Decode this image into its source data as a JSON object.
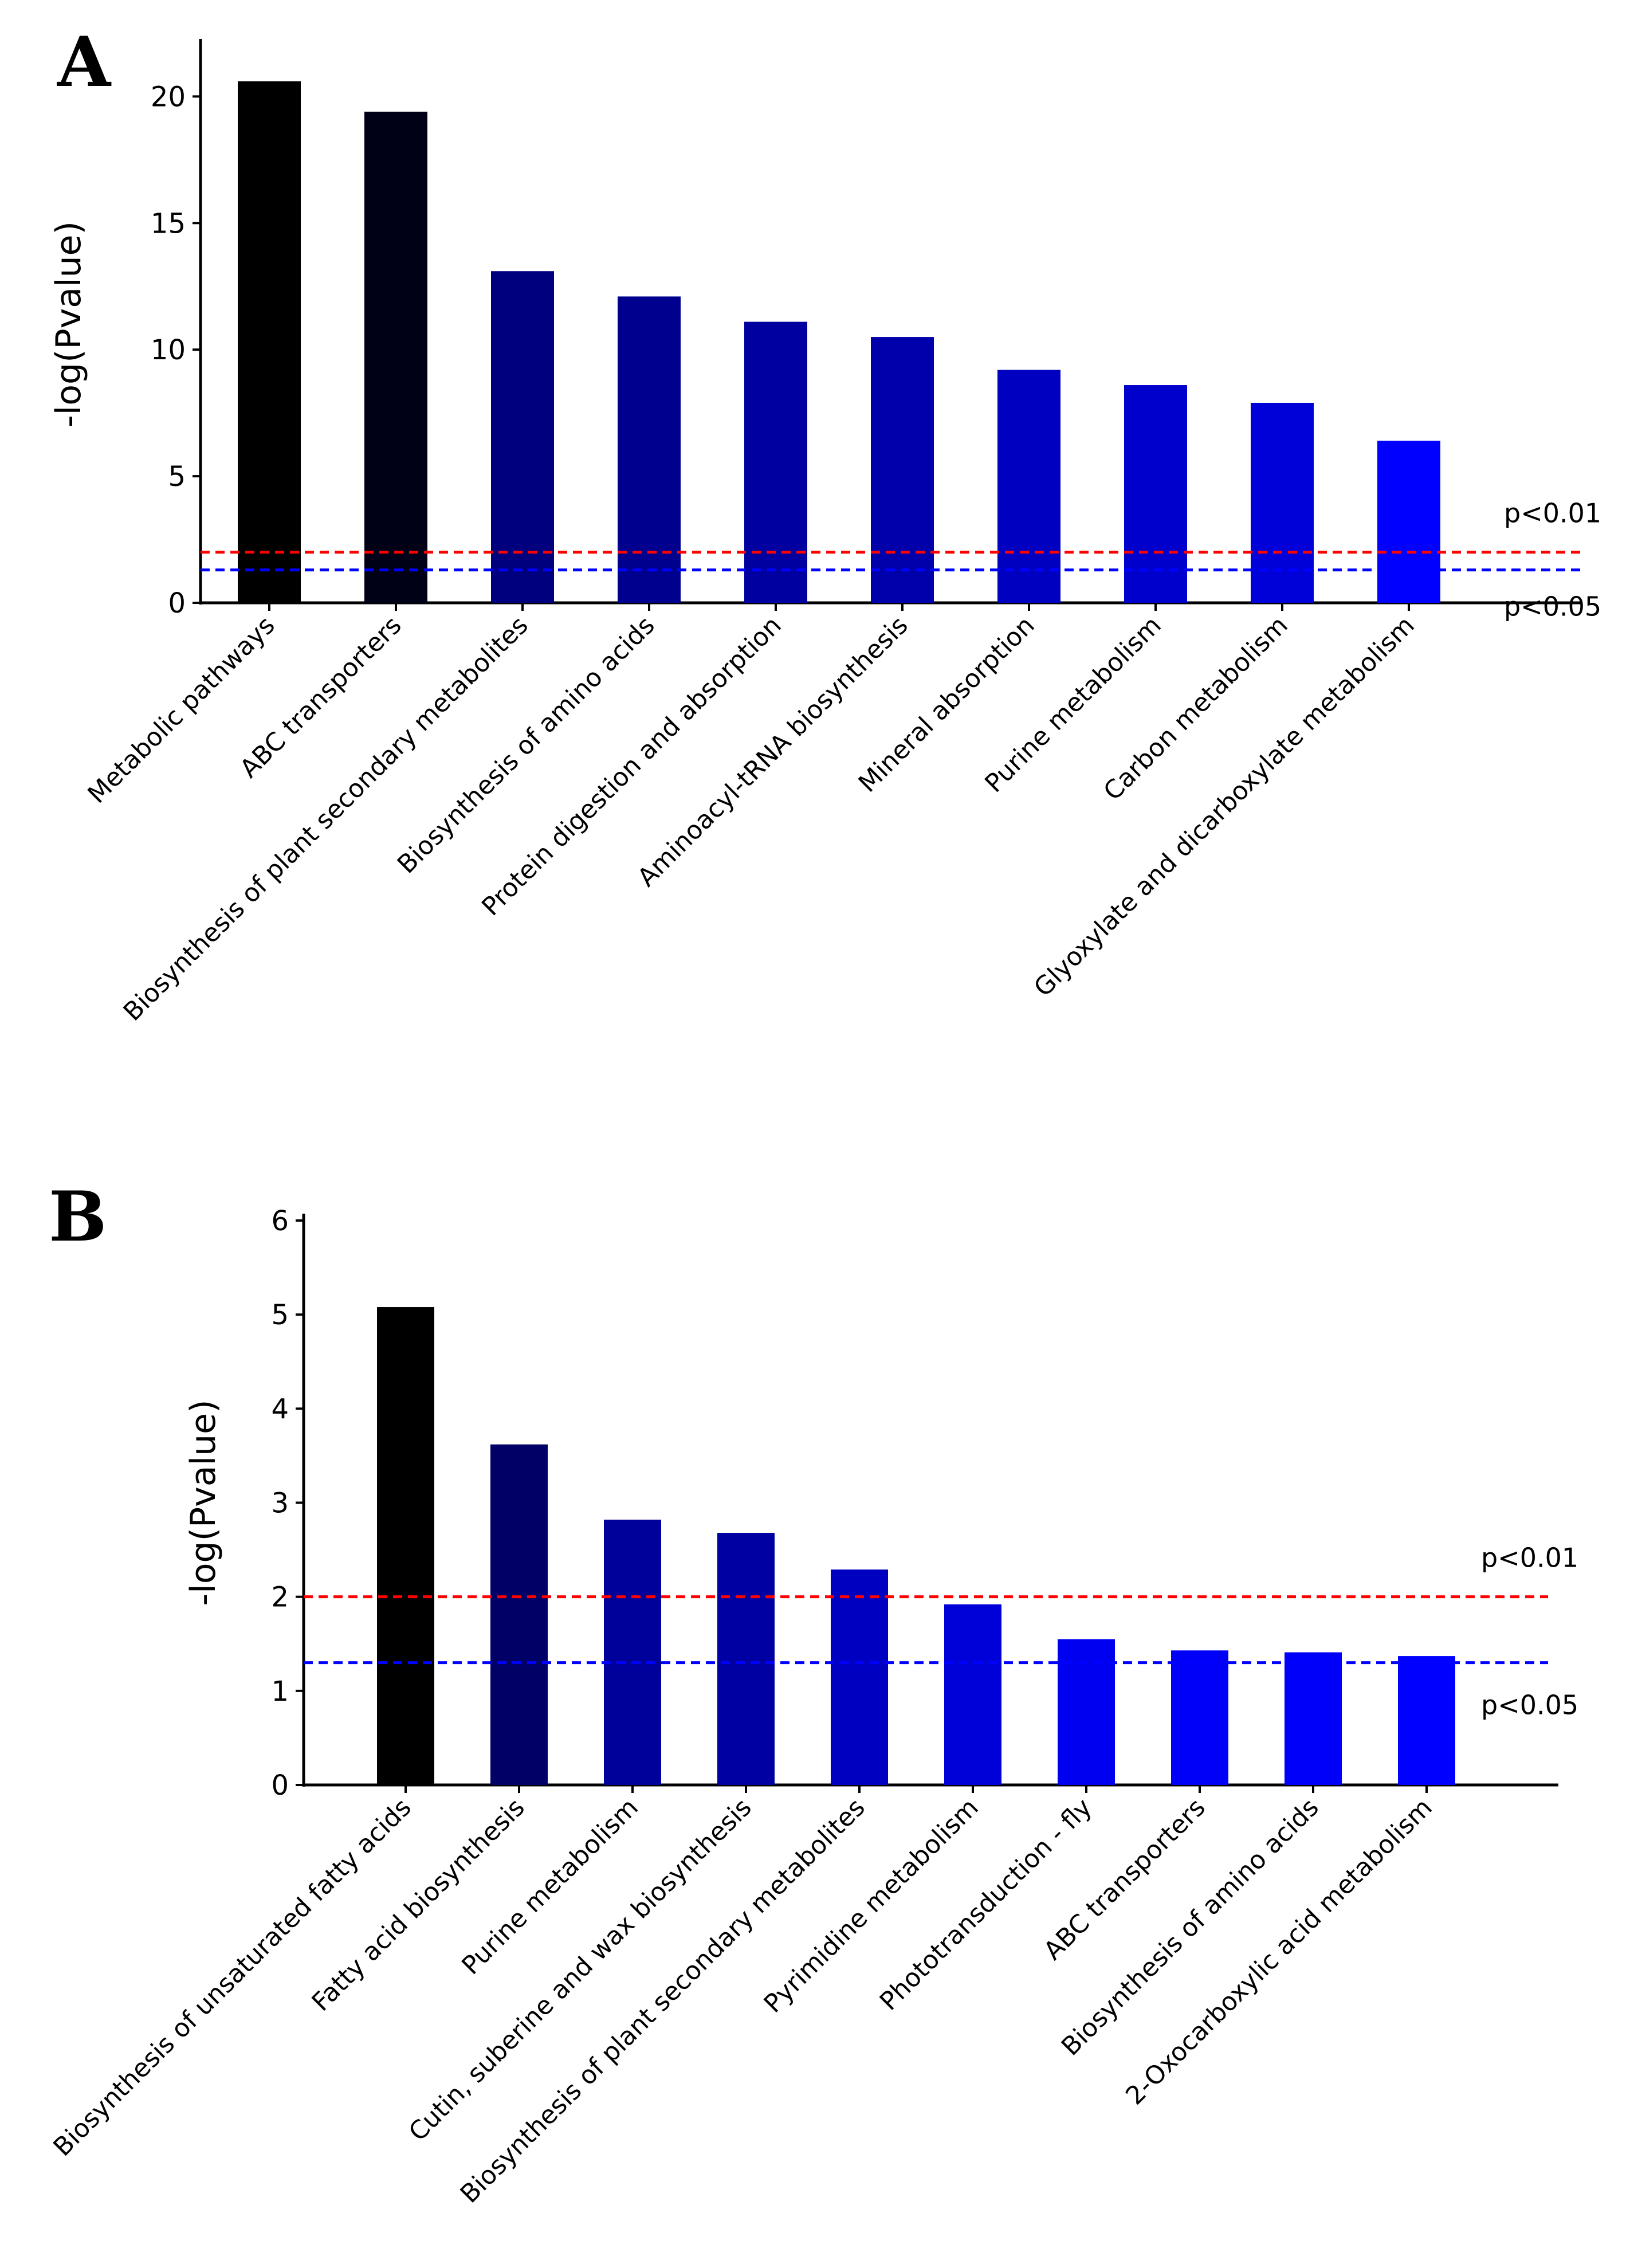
{
  "chart_data": [
    {
      "panel": "A",
      "type": "bar",
      "ylabel": "-log(Pvalue)",
      "ylim": [
        0,
        22
      ],
      "yticks": [
        0,
        5,
        10,
        15,
        20
      ],
      "categories": [
        "Metabolic pathways",
        "ABC transporters",
        "Biosynthesis of plant secondary metabolites",
        "Biosynthesis of amino acids",
        "Protein digestion and absorption",
        "Aminoacyl-tRNA biosynthesis",
        "Mineral absorption",
        "Purine metabolism",
        "Carbon metabolism",
        "Glyoxylate and dicarboxylate metabolism"
      ],
      "values": [
        20.6,
        19.4,
        13.1,
        12.1,
        11.1,
        10.5,
        9.2,
        8.6,
        7.9,
        6.4
      ],
      "colors": [
        "#000000",
        "#000016",
        "#00007e",
        "#00008f",
        "#0000a0",
        "#0000aa",
        "#0000c0",
        "#0000cc",
        "#0000d8",
        "#0000ff"
      ],
      "thresholds": [
        {
          "value": 2.0,
          "label": "p<0.01",
          "color": "#ff0000"
        },
        {
          "value": 1.3,
          "label": "p<0.05",
          "color": "#0000ff"
        }
      ]
    },
    {
      "panel": "B",
      "type": "bar",
      "ylabel": "-log(Pvalue)",
      "ylim": [
        0,
        6
      ],
      "yticks": [
        0,
        1,
        2,
        3,
        4,
        5,
        6
      ],
      "categories": [
        "Biosynthesis of unsaturated fatty acids",
        "Fatty acid biosynthesis",
        "Purine metabolism",
        "Cutin, suberine and wax biosynthesis",
        "Biosynthesis of plant secondary metabolites",
        "Pyrimidine metabolism",
        "Phototransduction - fly",
        "ABC transporters",
        "Biosynthesis of amino acids",
        "2-Oxocarboxylic acid metabolism"
      ],
      "values": [
        5.08,
        3.62,
        2.82,
        2.68,
        2.29,
        1.92,
        1.55,
        1.43,
        1.41,
        1.37
      ],
      "colors": [
        "#000000",
        "#000066",
        "#00009a",
        "#0000a2",
        "#0000c0",
        "#0000d8",
        "#0000f0",
        "#0000f8",
        "#0000fa",
        "#0000ff"
      ],
      "thresholds": [
        {
          "value": 2.0,
          "label": "p<0.01",
          "color": "#ff0000"
        },
        {
          "value": 1.3,
          "label": "p<0.05",
          "color": "#0000ff"
        }
      ]
    }
  ]
}
